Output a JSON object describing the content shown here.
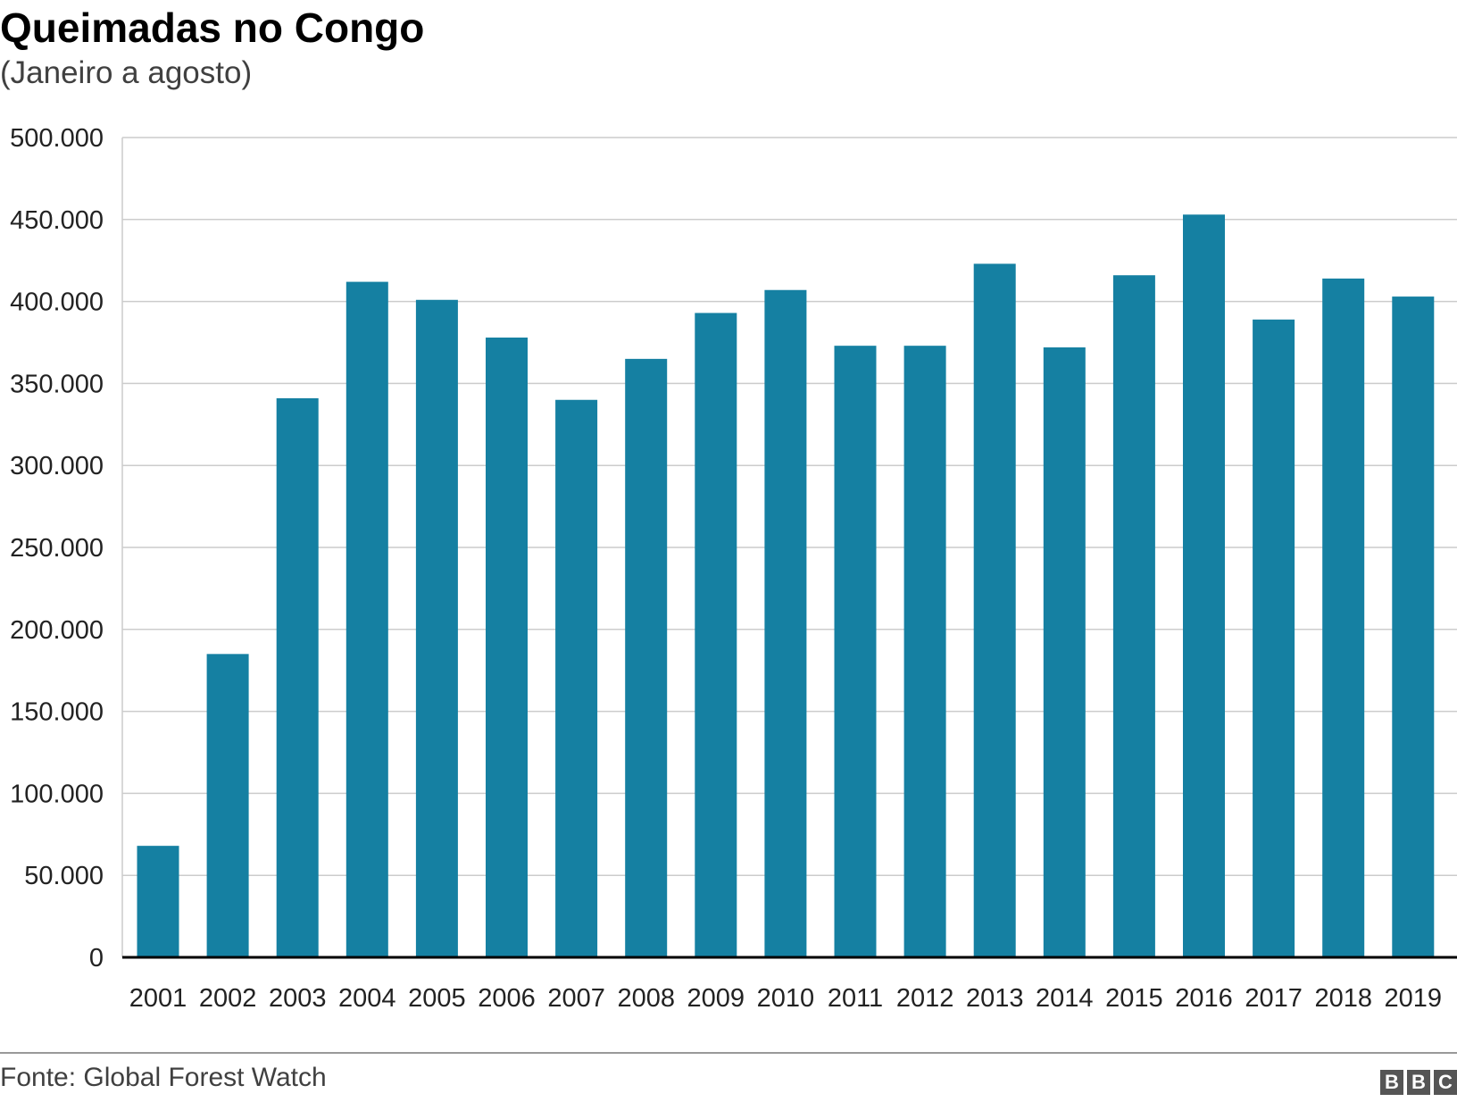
{
  "chart_data": {
    "type": "bar",
    "title": "Queimadas no Congo",
    "subtitle": "(Janeiro a agosto)",
    "xlabel": "",
    "ylabel": "",
    "categories": [
      "2001",
      "2002",
      "2003",
      "2004",
      "2005",
      "2006",
      "2007",
      "2008",
      "2009",
      "2010",
      "2011",
      "2012",
      "2013",
      "2014",
      "2015",
      "2016",
      "2017",
      "2018",
      "2019"
    ],
    "values": [
      68000,
      185000,
      341000,
      412000,
      401000,
      378000,
      340000,
      365000,
      393000,
      407000,
      373000,
      373000,
      423000,
      372000,
      416000,
      453000,
      389000,
      414000,
      403000
    ],
    "ylim": [
      0,
      500000
    ],
    "yticks": [
      0,
      50000,
      100000,
      150000,
      200000,
      250000,
      300000,
      350000,
      400000,
      450000,
      500000
    ],
    "ytick_labels": [
      "0",
      "50.000",
      "100.000",
      "150.000",
      "200.000",
      "250.000",
      "300.000",
      "350.000",
      "400.000",
      "450.000",
      "500.000"
    ],
    "grid": true,
    "bar_color": "#1580a2",
    "source": "Fonte: Global Forest Watch",
    "logo": [
      "B",
      "B",
      "C"
    ]
  }
}
